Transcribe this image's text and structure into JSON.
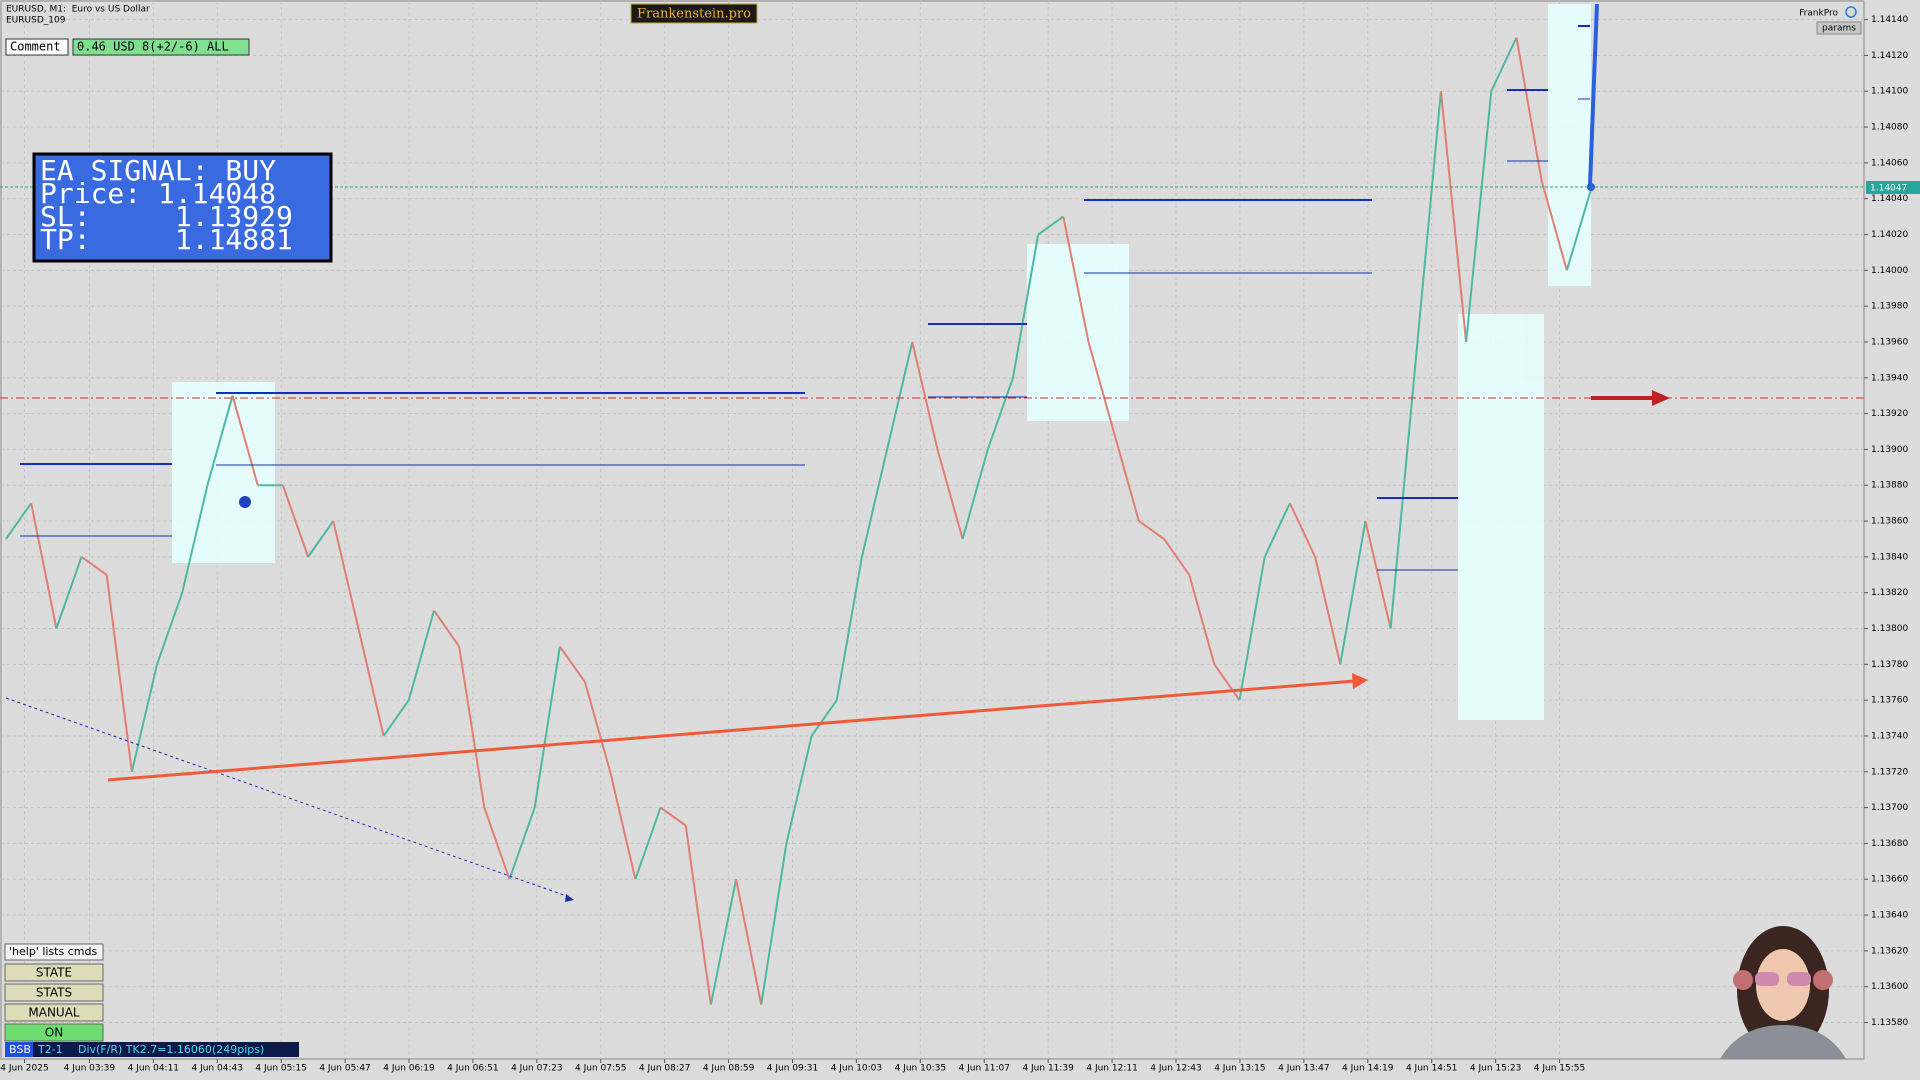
{
  "header": {
    "symbol": "EURUSD, M1:  Euro vs US Dollar",
    "account": "EURUSD_109",
    "brand": "Frankenstein.pro",
    "indicator": "FrankPro",
    "params_button": "params"
  },
  "comment": {
    "label": "Comment",
    "value": "0.46 USD 8(+2/-6) ALL"
  },
  "signal_panel": {
    "title": "EA SIGNAL: BUY",
    "lines": [
      "Price: 1.14048",
      "SL:     1.13929",
      "TP:     1.14881"
    ]
  },
  "price_axis": {
    "range": [
      1.1358,
      1.1414
    ],
    "ticks": [
      {
        "value": 1.1358,
        "label": "1.13580"
      },
      {
        "value": 1.136,
        "label": "1.13600"
      },
      {
        "value": 1.1362,
        "label": "1.13620"
      },
      {
        "value": 1.1364,
        "label": "1.13640"
      },
      {
        "value": 1.1366,
        "label": "1.13660"
      },
      {
        "value": 1.1368,
        "label": "1.13680"
      },
      {
        "value": 1.137,
        "label": "1.13700"
      },
      {
        "value": 1.1372,
        "label": "1.13720"
      },
      {
        "value": 1.1374,
        "label": "1.13740"
      },
      {
        "value": 1.1376,
        "label": "1.13760"
      },
      {
        "value": 1.1378,
        "label": "1.13780"
      },
      {
        "value": 1.138,
        "label": "1.13800"
      },
      {
        "value": 1.1382,
        "label": "1.13820"
      },
      {
        "value": 1.1384,
        "label": "1.13840"
      },
      {
        "value": 1.1386,
        "label": "1.13860"
      },
      {
        "value": 1.1388,
        "label": "1.13880"
      },
      {
        "value": 1.139,
        "label": "1.13900"
      },
      {
        "value": 1.1392,
        "label": "1.13920"
      },
      {
        "value": 1.1394,
        "label": "1.13940"
      },
      {
        "value": 1.1396,
        "label": "1.13960"
      },
      {
        "value": 1.1398,
        "label": "1.13980"
      },
      {
        "value": 1.14,
        "label": "1.14000"
      },
      {
        "value": 1.1402,
        "label": "1.14020"
      },
      {
        "value": 1.1404,
        "label": "1.14040"
      },
      {
        "value": 1.1406,
        "label": "1.14060"
      },
      {
        "value": 1.1408,
        "label": "1.14080"
      },
      {
        "value": 1.141,
        "label": "1.14100"
      },
      {
        "value": 1.1412,
        "label": "1.14120"
      },
      {
        "value": 1.1414,
        "label": "1.14140"
      }
    ],
    "current_price": "1.14047"
  },
  "time_axis": {
    "labels": [
      "4 Jun 2025",
      "4 Jun 03:39",
      "4 Jun 04:11",
      "4 Jun 04:43",
      "4 Jun 05:15",
      "4 Jun 05:47",
      "4 Jun 06:19",
      "4 Jun 06:51",
      "4 Jun 07:23",
      "4 Jun 07:55",
      "4 Jun 08:27",
      "4 Jun 08:59",
      "4 Jun 09:31",
      "4 Jun 10:03",
      "4 Jun 10:35",
      "4 Jun 11:07",
      "4 Jun 11:39",
      "4 Jun 12:11",
      "4 Jun 12:43",
      "4 Jun 13:15",
      "4 Jun 13:47",
      "4 Jun 14:19",
      "4 Jun 14:51",
      "4 Jun 15:23",
      "4 Jun 15:55"
    ]
  },
  "price_trace": [
    1.1385,
    1.1387,
    1.138,
    1.1384,
    1.1383,
    1.1372,
    1.1378,
    1.1382,
    1.1388,
    1.1393,
    1.1388,
    1.1388,
    1.1384,
    1.1386,
    1.138,
    1.1374,
    1.1376,
    1.1381,
    1.1379,
    1.137,
    1.1366,
    1.137,
    1.1379,
    1.1377,
    1.1372,
    1.1366,
    1.137,
    1.1369,
    1.1359,
    1.1366,
    1.1359,
    1.1368,
    1.1374,
    1.1376,
    1.1384,
    1.139,
    1.1396,
    1.139,
    1.1385,
    1.139,
    1.1394,
    1.1402,
    1.1403,
    1.1396,
    1.1391,
    1.1386,
    1.1385,
    1.1383,
    1.1378,
    1.1376,
    1.1384,
    1.1387,
    1.1384,
    1.1378,
    1.1386,
    1.138,
    1.1395,
    1.141,
    1.1396,
    1.141,
    1.1413,
    1.1405,
    1.14,
    1.14047
  ],
  "controls": {
    "hint": "'help' lists cmds",
    "buttons": [
      "STATE",
      "STATS",
      "MANUAL",
      "ON"
    ]
  },
  "status_bar": [
    "BSB",
    "T2-1",
    "Div(F/R) TK2.7=1.16060(249pips)"
  ]
}
